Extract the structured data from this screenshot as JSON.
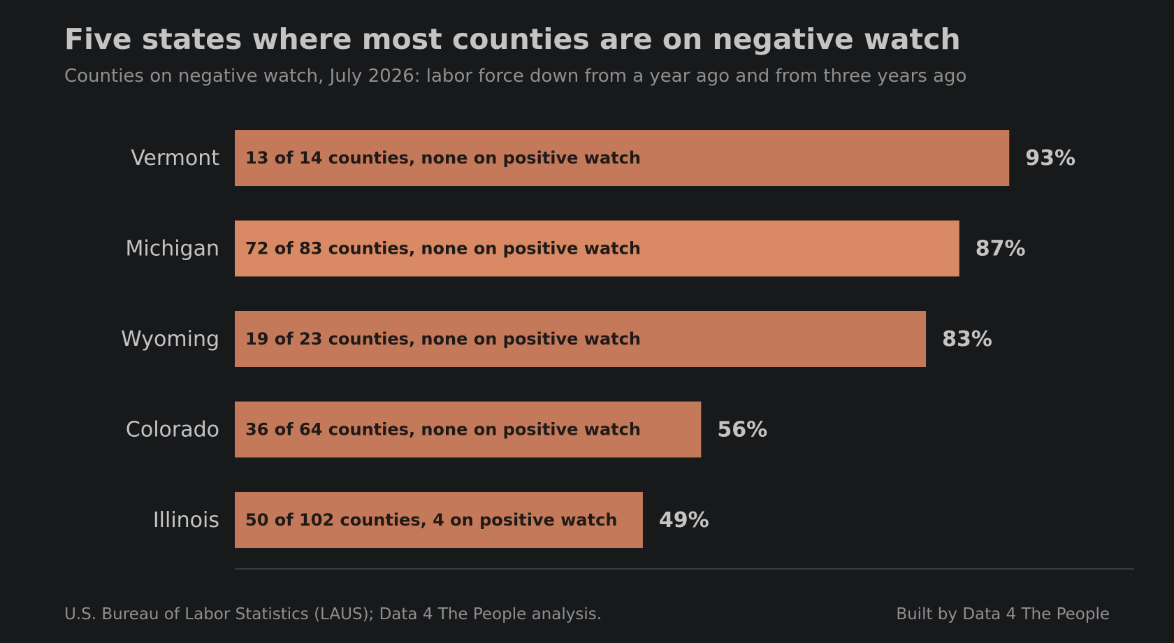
{
  "header": {
    "title": "Five states where most counties are on negative watch",
    "subtitle": "Counties on negative watch, July 2026: labor force down from a year ago and from three years ago"
  },
  "footer": {
    "source": "U.S. Bureau of Labor Statistics (LAUS); Data 4 The People analysis.",
    "credit": "Built by Data 4 The People"
  },
  "colors": {
    "background": "#18191b",
    "bar": "#c47a5a",
    "bar_highlight": "#d98a64",
    "bar_text": "#1f1a18",
    "label_text": "#c4c4c4",
    "baseline": "#3a3b3d"
  },
  "chart_data": {
    "type": "bar",
    "orientation": "horizontal",
    "categories": [
      "Vermont",
      "Michigan",
      "Wyoming",
      "Colorado",
      "Illinois"
    ],
    "values": [
      93,
      87,
      83,
      56,
      49
    ],
    "value_labels": [
      "93%",
      "87%",
      "83%",
      "56%",
      "49%"
    ],
    "bar_labels": [
      "13 of 14 counties, none on positive watch",
      "72 of 83 counties, none on positive watch",
      "19 of 23 counties, none on positive watch",
      "36 of 64 counties, none on positive watch",
      "50 of 102 counties, 4 on positive watch"
    ],
    "highlighted": [
      "Michigan"
    ],
    "xlim": [
      0,
      108
    ],
    "grid": false,
    "legend": "none"
  }
}
